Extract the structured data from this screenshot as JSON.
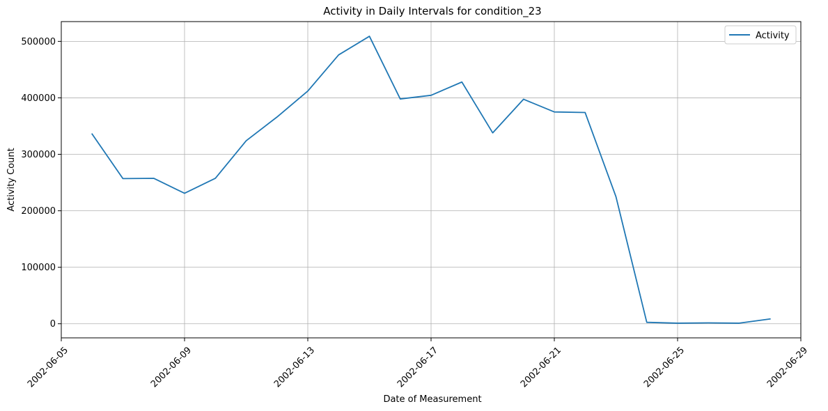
{
  "chart_data": {
    "type": "line",
    "title": "Activity in Daily Intervals for condition_23",
    "xlabel": "Date of Measurement",
    "ylabel": "Activity Count",
    "grid": true,
    "legend_position": "top-right",
    "x_ticks": [
      "2002-06-05",
      "2002-06-09",
      "2002-06-13",
      "2002-06-17",
      "2002-06-21",
      "2002-06-25",
      "2002-06-29"
    ],
    "y_ticks": [
      "0",
      "100000",
      "200000",
      "300000",
      "400000",
      "500000"
    ],
    "y_tick_values": [
      0,
      100000,
      200000,
      300000,
      400000,
      500000
    ],
    "xlim": [
      "2002-06-05",
      "2002-06-29"
    ],
    "ylim": [
      -25000,
      535000
    ],
    "series": [
      {
        "name": "Activity",
        "color": "#1f77b4",
        "x": [
          "2002-06-06",
          "2002-06-07",
          "2002-06-08",
          "2002-06-09",
          "2002-06-10",
          "2002-06-11",
          "2002-06-12",
          "2002-06-13",
          "2002-06-14",
          "2002-06-15",
          "2002-06-16",
          "2002-06-17",
          "2002-06-18",
          "2002-06-19",
          "2002-06-20",
          "2002-06-21",
          "2002-06-22",
          "2002-06-23",
          "2002-06-24",
          "2002-06-25",
          "2002-06-26",
          "2002-06-27",
          "2002-06-28"
        ],
        "values": [
          336000,
          257000,
          257500,
          231000,
          257500,
          324000,
          366000,
          412000,
          476000,
          509000,
          398000,
          404500,
          428000,
          338000,
          397500,
          375000,
          374000,
          225000,
          2500,
          1000,
          1500,
          1000,
          8500
        ]
      }
    ]
  }
}
